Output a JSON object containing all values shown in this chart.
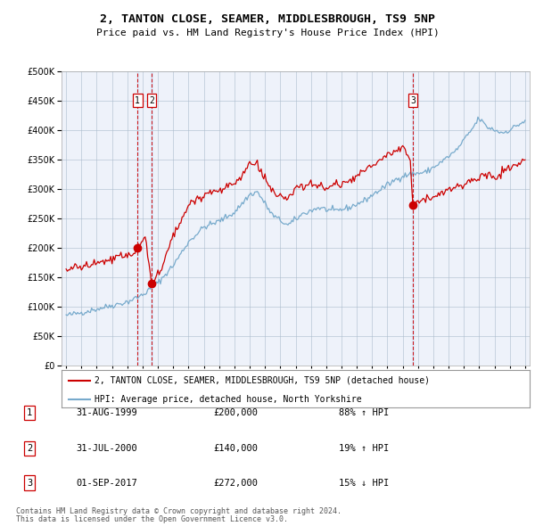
{
  "title": "2, TANTON CLOSE, SEAMER, MIDDLESBROUGH, TS9 5NP",
  "subtitle": "Price paid vs. HM Land Registry's House Price Index (HPI)",
  "legend_line1": "2, TANTON CLOSE, SEAMER, MIDDLESBROUGH, TS9 5NP (detached house)",
  "legend_line2": "HPI: Average price, detached house, North Yorkshire",
  "footer1": "Contains HM Land Registry data © Crown copyright and database right 2024.",
  "footer2": "This data is licensed under the Open Government Licence v3.0.",
  "transactions": [
    {
      "num": 1,
      "date": "31-AUG-1999",
      "price": 200000,
      "pct": "88%",
      "dir": "↑"
    },
    {
      "num": 2,
      "date": "31-JUL-2000",
      "price": 140000,
      "pct": "19%",
      "dir": "↑"
    },
    {
      "num": 3,
      "date": "01-SEP-2017",
      "price": 272000,
      "pct": "15%",
      "dir": "↓"
    }
  ],
  "red_color": "#cc0000",
  "blue_color": "#77aacc",
  "vline_color": "#cc0000",
  "vband_color": "#ddeeff",
  "grid_color": "#aabbcc",
  "bg_color": "#ffffff",
  "plot_bg": "#eef2fa",
  "ylim": [
    0,
    500000
  ],
  "yticks": [
    0,
    50000,
    100000,
    150000,
    200000,
    250000,
    300000,
    350000,
    400000,
    450000,
    500000
  ],
  "trans_dates_yr": [
    1999.667,
    2000.583,
    2017.667
  ],
  "trans_prices": [
    200000,
    140000,
    272000
  ],
  "hpi_anchors_t": [
    1995.0,
    1996.0,
    1997.0,
    1998.0,
    1999.0,
    2000.0,
    2001.0,
    2002.0,
    2003.0,
    2004.0,
    2005.0,
    2006.0,
    2007.0,
    2007.5,
    2008.5,
    2009.5,
    2010.5,
    2011.5,
    2012.5,
    2013.5,
    2014.5,
    2015.5,
    2016.5,
    2017.0,
    2017.5,
    2018.5,
    2019.5,
    2020.5,
    2021.5,
    2022.0,
    2022.5,
    2023.5,
    2024.0,
    2024.5,
    2025.0
  ],
  "hpi_anchors_v": [
    85000,
    90000,
    96000,
    102000,
    108000,
    120000,
    140000,
    170000,
    210000,
    235000,
    245000,
    260000,
    290000,
    295000,
    255000,
    238000,
    258000,
    268000,
    262000,
    268000,
    280000,
    298000,
    315000,
    322000,
    325000,
    328000,
    345000,
    365000,
    400000,
    420000,
    405000,
    395000,
    400000,
    408000,
    415000
  ],
  "prop_anchors_t": [
    1995.0,
    1996.0,
    1997.0,
    1998.0,
    1999.3,
    1999.667,
    2000.2,
    2000.583,
    2001.2,
    2002.0,
    2003.0,
    2004.0,
    2005.0,
    2006.0,
    2007.0,
    2007.5,
    2008.0,
    2008.5,
    2009.0,
    2009.5,
    2010.0,
    2011.0,
    2012.0,
    2013.0,
    2014.0,
    2015.0,
    2016.0,
    2016.5,
    2017.0,
    2017.5,
    2017.667,
    2018.0,
    2018.5,
    2019.0,
    2020.0,
    2021.0,
    2022.0,
    2022.5,
    2023.0,
    2023.5,
    2024.0,
    2024.5,
    2025.0
  ],
  "prop_anchors_v": [
    163000,
    168000,
    173000,
    180000,
    190000,
    200000,
    218000,
    140000,
    162000,
    220000,
    272000,
    292000,
    298000,
    308000,
    342000,
    340000,
    318000,
    295000,
    283000,
    282000,
    302000,
    308000,
    302000,
    308000,
    322000,
    338000,
    358000,
    365000,
    372000,
    352000,
    272000,
    278000,
    283000,
    288000,
    298000,
    308000,
    320000,
    324000,
    318000,
    328000,
    333000,
    343000,
    348000
  ]
}
